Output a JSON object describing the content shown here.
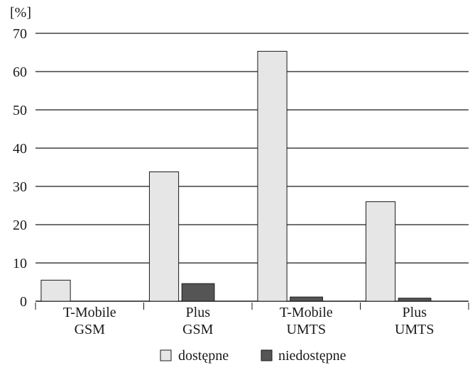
{
  "chart_data": {
    "type": "bar",
    "ylabel": "[%]",
    "ylim": [
      0,
      70
    ],
    "yticks": [
      0,
      10,
      20,
      30,
      40,
      50,
      60,
      70
    ],
    "ytick_labels": [
      "0",
      "10",
      "20",
      "30",
      "40",
      "50",
      "60",
      "70"
    ],
    "grid": true,
    "legend_position": "bottom-center",
    "categories": [
      [
        "T-Mobile",
        "GSM"
      ],
      [
        "Plus",
        "GSM"
      ],
      [
        "T-Mobile",
        "UMTS"
      ],
      [
        "Plus",
        "UMTS"
      ]
    ],
    "series": [
      {
        "name": "dostępne",
        "color": "#e6e6e6",
        "values": [
          5.5,
          33.8,
          65.3,
          26.0
        ]
      },
      {
        "name": "niedostępne",
        "color": "#555555",
        "values": [
          0,
          4.6,
          1.1,
          0.8
        ]
      }
    ]
  }
}
